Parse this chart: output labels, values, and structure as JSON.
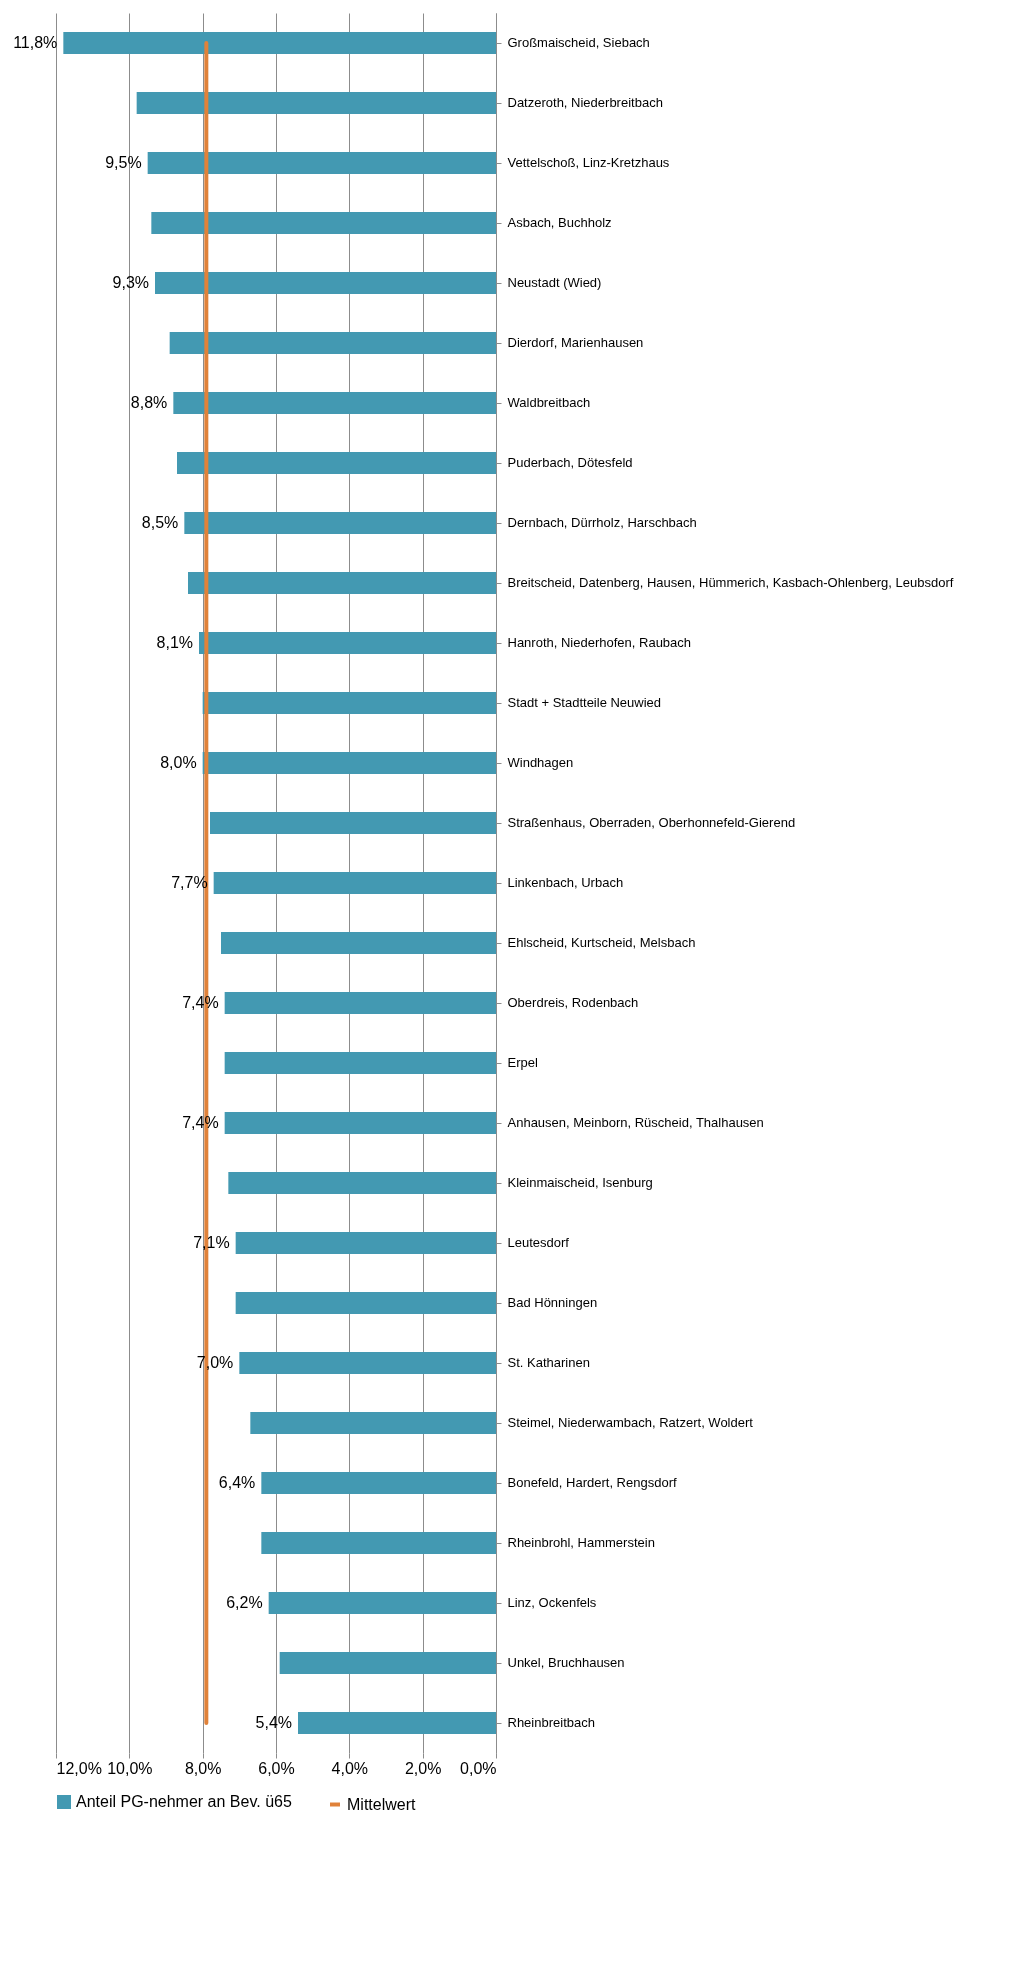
{
  "chart_data": {
    "type": "bar",
    "orientation": "horizontal",
    "categories": [
      "Großmaischeid, Siebach",
      "Datzeroth, Niederbreitbach",
      "Vettelschoß, Linz-Kretzhaus",
      "Asbach, Buchholz",
      "Neustadt (Wied)",
      "Dierdorf, Marienhausen",
      "Waldbreitbach",
      "Puderbach, Dötesfeld",
      "Dernbach, Dürrholz, Harschbach",
      "Breitscheid, Datenberg, Hausen, Hümmerich, Kasbach-Ohlenberg, Leubsdorf",
      "Hanroth, Niederhofen, Raubach",
      "Stadt + Stadtteile Neuwied",
      "Windhagen",
      "Straßenhaus, Oberraden, Oberhonnefeld-Gierend",
      "Linkenbach, Urbach",
      "Ehlscheid, Kurtscheid, Melsbach",
      "Oberdreis, Rodenbach",
      "Erpel",
      "Anhausen, Meinborn, Rüscheid, Thalhausen",
      "Kleinmaischeid, Isenburg",
      "Leutesdorf",
      "Bad Hönningen",
      "St. Katharinen",
      "Steimel, Niederwambach, Ratzert, Woldert",
      "Bonefeld, Hardert, Rengsdorf",
      "Rheinbrohl, Hammerstein",
      "Linz, Ockenfels",
      "Unkel, Bruchhausen",
      "Rheinbreitbach"
    ],
    "series": [
      {
        "name": "Anteil PG-nehmer an Bev. ü65",
        "color": "#4399b2",
        "values": [
          11.8,
          9.8,
          9.5,
          9.4,
          9.3,
          8.9,
          8.8,
          8.7,
          8.5,
          8.4,
          8.1,
          8.0,
          8.0,
          7.8,
          7.7,
          7.5,
          7.4,
          7.4,
          7.4,
          7.3,
          7.1,
          7.1,
          7.0,
          6.7,
          6.4,
          6.4,
          6.2,
          5.9,
          5.4
        ],
        "value_labels": [
          "11,8%",
          null,
          "9,5%",
          null,
          "9,3%",
          null,
          "8,8%",
          null,
          "8,5%",
          null,
          "8,1%",
          null,
          "8,0%",
          null,
          "7,7%",
          null,
          "7,4%",
          null,
          "7,4%",
          null,
          "7,1%",
          null,
          "7,0%",
          null,
          "6,4%",
          null,
          "6,2%",
          null,
          "5,4%"
        ]
      },
      {
        "name": "Mittelwert",
        "type": "line",
        "color": "#e0823a",
        "values": [
          7.9,
          7.9,
          7.9,
          7.9,
          7.9,
          7.9,
          7.9,
          7.9,
          7.9,
          7.9,
          7.9,
          7.9,
          7.9,
          7.9,
          7.9,
          7.9,
          7.9,
          7.9,
          7.9,
          7.9,
          7.9,
          7.9,
          7.9,
          7.9,
          7.9,
          7.9,
          7.9,
          7.9,
          7.9
        ]
      }
    ],
    "xlim": [
      12,
      0
    ],
    "xticks": [
      {
        "value": 12,
        "label": "12,0%"
      },
      {
        "value": 10,
        "label": "10,0%"
      },
      {
        "value": 8,
        "label": "8,0%"
      },
      {
        "value": 6,
        "label": "6,0%"
      },
      {
        "value": 4,
        "label": "4,0%"
      },
      {
        "value": 2,
        "label": "2,0%"
      },
      {
        "value": 0,
        "label": "0,0%"
      }
    ],
    "grid": "x",
    "legend": "bottom",
    "marker": "none"
  }
}
